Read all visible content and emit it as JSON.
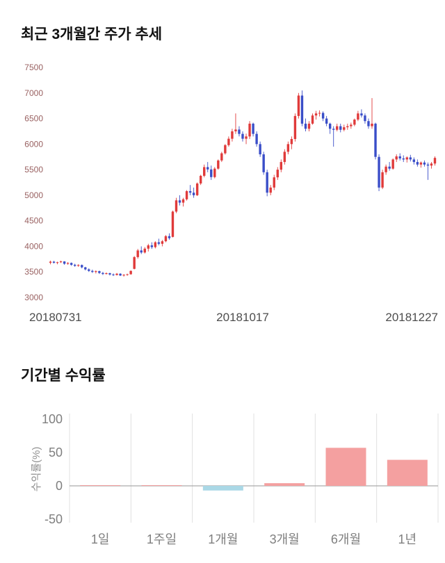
{
  "page": {
    "background": "#ffffff"
  },
  "chart_data": [
    {
      "type": "candlestick",
      "title": "최근 3개월간 주가 추세",
      "xlabel": "",
      "ylabel": "",
      "ylim": [
        3000,
        7500
      ],
      "y_ticks": [
        7500,
        7000,
        6500,
        6000,
        5500,
        5000,
        4500,
        4000,
        3500,
        3000
      ],
      "x_tick_labels": [
        "20180731",
        "20181017",
        "20181227"
      ],
      "grid": false,
      "legend": false,
      "up_color": "#e03a3a",
      "down_color": "#3a4ec8",
      "y_tick_color": "#996161",
      "x_tick_color": "#4d4d4d",
      "ohlc": [
        [
          3680,
          3720,
          3650,
          3700
        ],
        [
          3700,
          3715,
          3665,
          3680
        ],
        [
          3680,
          3700,
          3650,
          3690
        ],
        [
          3690,
          3720,
          3675,
          3705
        ],
        [
          3705,
          3710,
          3640,
          3660
        ],
        [
          3660,
          3690,
          3640,
          3675
        ],
        [
          3675,
          3685,
          3620,
          3640
        ],
        [
          3640,
          3660,
          3600,
          3620
        ],
        [
          3620,
          3650,
          3600,
          3635
        ],
        [
          3635,
          3645,
          3570,
          3590
        ],
        [
          3590,
          3600,
          3530,
          3550
        ],
        [
          3550,
          3570,
          3500,
          3520
        ],
        [
          3520,
          3545,
          3480,
          3500
        ],
        [
          3500,
          3530,
          3470,
          3515
        ],
        [
          3515,
          3525,
          3460,
          3480
        ],
        [
          3480,
          3500,
          3440,
          3460
        ],
        [
          3460,
          3490,
          3450,
          3475
        ],
        [
          3475,
          3485,
          3430,
          3450
        ],
        [
          3450,
          3470,
          3420,
          3440
        ],
        [
          3440,
          3480,
          3430,
          3465
        ],
        [
          3465,
          3475,
          3420,
          3430
        ],
        [
          3430,
          3455,
          3410,
          3445
        ],
        [
          3445,
          3465,
          3425,
          3455
        ],
        [
          3455,
          3530,
          3445,
          3520
        ],
        [
          3560,
          3810,
          3550,
          3790
        ],
        [
          3790,
          3950,
          3760,
          3920
        ],
        [
          3920,
          4000,
          3850,
          3880
        ],
        [
          3880,
          3985,
          3860,
          3955
        ],
        [
          3955,
          4050,
          3900,
          4020
        ],
        [
          4020,
          4080,
          3950,
          3985
        ],
        [
          3985,
          4100,
          3960,
          4080
        ],
        [
          4080,
          4150,
          4020,
          4050
        ],
        [
          4050,
          4125,
          4000,
          4100
        ],
        [
          4100,
          4220,
          4080,
          4200
        ],
        [
          4200,
          4255,
          4130,
          4160
        ],
        [
          4185,
          4700,
          4175,
          4680
        ],
        [
          4680,
          4950,
          4650,
          4900
        ],
        [
          4900,
          5000,
          4800,
          4855
        ],
        [
          4855,
          4950,
          4780,
          4920
        ],
        [
          4920,
          5100,
          4895,
          5080
        ],
        [
          5080,
          5200,
          5000,
          5050
        ],
        [
          5050,
          5150,
          4950,
          5000
        ],
        [
          5000,
          5250,
          4985,
          5230
        ],
        [
          5230,
          5400,
          5200,
          5380
        ],
        [
          5380,
          5600,
          5350,
          5550
        ],
        [
          5550,
          5650,
          5450,
          5505
        ],
        [
          5505,
          5580,
          5300,
          5355
        ],
        [
          5355,
          5550,
          5330,
          5520
        ],
        [
          5520,
          5700,
          5500,
          5680
        ],
        [
          5680,
          5850,
          5650,
          5820
        ],
        [
          5820,
          6000,
          5795,
          5980
        ],
        [
          5980,
          6150,
          5950,
          6105
        ],
        [
          6105,
          6300,
          6050,
          6250
        ],
        [
          6250,
          6600,
          6200,
          6285
        ],
        [
          6285,
          6350,
          6150,
          6200
        ],
        [
          6200,
          6250,
          6050,
          6105
        ],
        [
          6105,
          6205,
          6000,
          6150
        ],
        [
          6150,
          6450,
          6100,
          6400
        ],
        [
          6400,
          6420,
          6150,
          6200
        ],
        [
          6200,
          6250,
          5950,
          6000
        ],
        [
          6000,
          6050,
          5750,
          5800
        ],
        [
          5800,
          5850,
          5400,
          5450
        ],
        [
          5450,
          5500,
          4980,
          5050
        ],
        [
          5050,
          5200,
          5000,
          5150
        ],
        [
          5150,
          5400,
          5100,
          5350
        ],
        [
          5350,
          5550,
          5300,
          5500
        ],
        [
          5500,
          5700,
          5450,
          5650
        ],
        [
          5650,
          5900,
          5600,
          5850
        ],
        [
          5850,
          6050,
          5800,
          6000
        ],
        [
          6000,
          6150,
          5900,
          6100
        ],
        [
          6100,
          6600,
          6050,
          6550
        ],
        [
          6550,
          7000,
          6500,
          6950
        ],
        [
          6950,
          7050,
          6350,
          6400
        ],
        [
          6400,
          6500,
          6250,
          6300
        ],
        [
          6300,
          6450,
          6250,
          6400
        ],
        [
          6400,
          6600,
          6380,
          6560
        ],
        [
          6560,
          6650,
          6480,
          6600
        ],
        [
          6600,
          6660,
          6540,
          6610
        ],
        [
          6610,
          6640,
          6450,
          6500
        ],
        [
          6500,
          6550,
          6350,
          6400
        ],
        [
          6400,
          6420,
          6200,
          6300
        ],
        [
          6300,
          6350,
          5950,
          6280
        ],
        [
          6280,
          6400,
          6250,
          6350
        ],
        [
          6350,
          6400,
          6230,
          6280
        ],
        [
          6280,
          6380,
          6250,
          6330
        ],
        [
          6330,
          6400,
          6280,
          6350
        ],
        [
          6350,
          6420,
          6300,
          6380
        ],
        [
          6380,
          6500,
          6350,
          6480
        ],
        [
          6480,
          6650,
          6450,
          6600
        ],
        [
          6600,
          6680,
          6520,
          6560
        ],
        [
          6560,
          6600,
          6400,
          6450
        ],
        [
          6450,
          6500,
          6300,
          6350
        ],
        [
          6350,
          6900,
          6300,
          6400
        ],
        [
          6400,
          6420,
          5700,
          5750
        ],
        [
          5750,
          5800,
          5080,
          5150
        ],
        [
          5150,
          5500,
          5120,
          5450
        ],
        [
          5450,
          5600,
          5400,
          5560
        ],
        [
          5560,
          5650,
          5480,
          5520
        ],
        [
          5520,
          5720,
          5500,
          5700
        ],
        [
          5700,
          5800,
          5650,
          5760
        ],
        [
          5760,
          5820,
          5680,
          5720
        ],
        [
          5720,
          5780,
          5650,
          5700
        ],
        [
          5700,
          5760,
          5640,
          5740
        ],
        [
          5740,
          5790,
          5660,
          5700
        ],
        [
          5700,
          5740,
          5600,
          5650
        ],
        [
          5650,
          5700,
          5560,
          5600
        ],
        [
          5600,
          5660,
          5540,
          5640
        ],
        [
          5640,
          5680,
          5560,
          5600
        ],
        [
          5600,
          5640,
          5300,
          5580
        ],
        [
          5580,
          5650,
          5520,
          5620
        ],
        [
          5620,
          5760,
          5580,
          5730
        ]
      ]
    },
    {
      "type": "bar",
      "title": "기간별 수익률",
      "xlabel": "",
      "ylabel": "수익률(%)",
      "categories": [
        "1일",
        "1주일",
        "1개월",
        "3개월",
        "6개월",
        "1년"
      ],
      "values": [
        1,
        1,
        -7,
        4,
        57,
        39
      ],
      "ylim": [
        -50,
        100
      ],
      "y_ticks": [
        100,
        50,
        0,
        -50
      ],
      "grid": "vertical-separators",
      "legend": false,
      "positive_color": "#f4a0a0",
      "negative_color": "#aad8e6",
      "axis_line_color": "#aaaaaa",
      "separator_color": "#e0e0e0",
      "tick_label_color": "#7f7f7f",
      "ylabel_color": "#8f8f8f"
    }
  ]
}
